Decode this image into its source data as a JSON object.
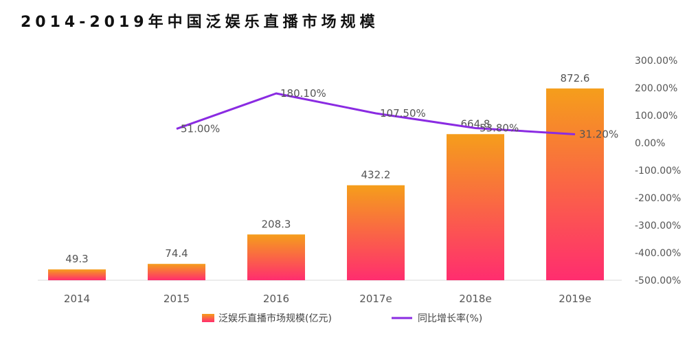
{
  "page_title": "2014-2019年中国泛娱乐直播市场规模",
  "chart_data": {
    "type": "bar+line",
    "title": "2014-2019年中国泛娱乐直播市场规模",
    "categories": [
      "2014",
      "2015",
      "2016",
      "2017e",
      "2018e",
      "2019e"
    ],
    "series": [
      {
        "name": "泛娱乐直播市场规模(亿元)",
        "type": "bar",
        "axis": "left",
        "values": [
          49.3,
          74.4,
          208.3,
          432.2,
          664.8,
          872.6
        ],
        "labels": [
          "49.3",
          "74.4",
          "208.3",
          "432.2",
          "664.8",
          "872.6"
        ],
        "color_top": "#F59E1B",
        "color_bottom": "#FF2D6F"
      },
      {
        "name": "同比增长率(%)",
        "type": "line",
        "axis": "right",
        "values": [
          null,
          51.0,
          180.1,
          107.5,
          53.8,
          31.2
        ],
        "labels": [
          "",
          "51.00%",
          "180.10%",
          "107.50%",
          "53.80%",
          "31.20%"
        ],
        "color": "#8A2BE2"
      }
    ],
    "left_axis": {
      "ylim": [
        0,
        1000
      ],
      "visible": false
    },
    "right_axis": {
      "ylim": [
        -500,
        300
      ],
      "step": 100,
      "tick_labels": [
        "300.00%",
        "200.00%",
        "100.00%",
        "0.00%",
        "-100.00%",
        "-200.00%",
        "-300.00%",
        "-400.00%",
        "-500.00%"
      ]
    },
    "legend": {
      "position": "bottom-center"
    },
    "grid": false
  }
}
